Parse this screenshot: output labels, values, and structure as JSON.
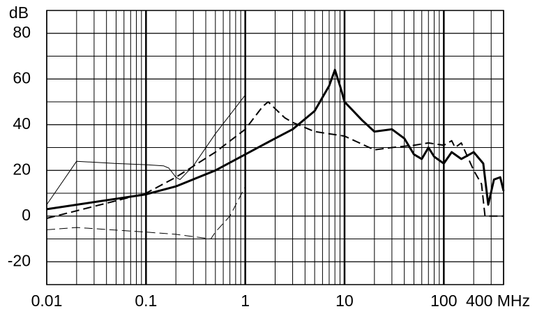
{
  "chart_data": {
    "type": "line",
    "y_label": "dB",
    "xscale": "log",
    "xlim": [
      0.01,
      400
    ],
    "xticks": [
      0.01,
      0.1,
      1,
      10,
      100,
      {
        "value": 400,
        "label": "400 MHz"
      }
    ],
    "ylim": [
      -30,
      90
    ],
    "yticks": [
      -20,
      0,
      20,
      40,
      60,
      80
    ],
    "grid": true,
    "y_grid_step": 10,
    "series": [
      {
        "color": "#000000",
        "width": 3,
        "dash": "solid",
        "x": [
          0.01,
          0.1,
          0.2,
          0.5,
          1,
          2,
          3,
          5,
          7,
          8,
          9,
          10,
          15,
          20,
          30,
          40,
          50,
          60,
          70,
          80,
          100,
          120,
          150,
          200,
          250,
          280,
          320,
          370,
          400
        ],
        "values": [
          3,
          9.5,
          13,
          20,
          27,
          34,
          38,
          46,
          57,
          64,
          57,
          50,
          42,
          37,
          38,
          34,
          27,
          25,
          30,
          26,
          23,
          28,
          25,
          28,
          23,
          5,
          16,
          17,
          11
        ]
      },
      {
        "color": "#000000",
        "width": 2,
        "dash": "dashed",
        "x": [
          0.01,
          0.1,
          0.2,
          0.5,
          1,
          1.5,
          1.7,
          2,
          2.5,
          3,
          5,
          10,
          20,
          30,
          50,
          70,
          100,
          120,
          130,
          150,
          200,
          240,
          260,
          400
        ],
        "values": [
          -1,
          10,
          17,
          28,
          38,
          48,
          50,
          47,
          43,
          41,
          37,
          35,
          29,
          30,
          31,
          32,
          31,
          33,
          30,
          32,
          20,
          14,
          0,
          0
        ]
      },
      {
        "color": "#000000",
        "width": 1,
        "dash": "solid",
        "x": [
          0.01,
          0.02,
          0.05,
          0.1,
          0.15,
          0.17,
          0.2,
          0.22,
          0.3,
          0.5,
          1
        ],
        "values": [
          5,
          24,
          23,
          22.5,
          22,
          21,
          17,
          16,
          22,
          36,
          53
        ]
      },
      {
        "color": "#000000",
        "width": 1,
        "dash": "dashed",
        "x": [
          0.01,
          0.02,
          0.1,
          0.2,
          0.3,
          0.45,
          0.5,
          0.7,
          1
        ],
        "values": [
          -6,
          -5,
          -7,
          -8,
          -9,
          -10,
          -7,
          0,
          13
        ]
      }
    ]
  }
}
